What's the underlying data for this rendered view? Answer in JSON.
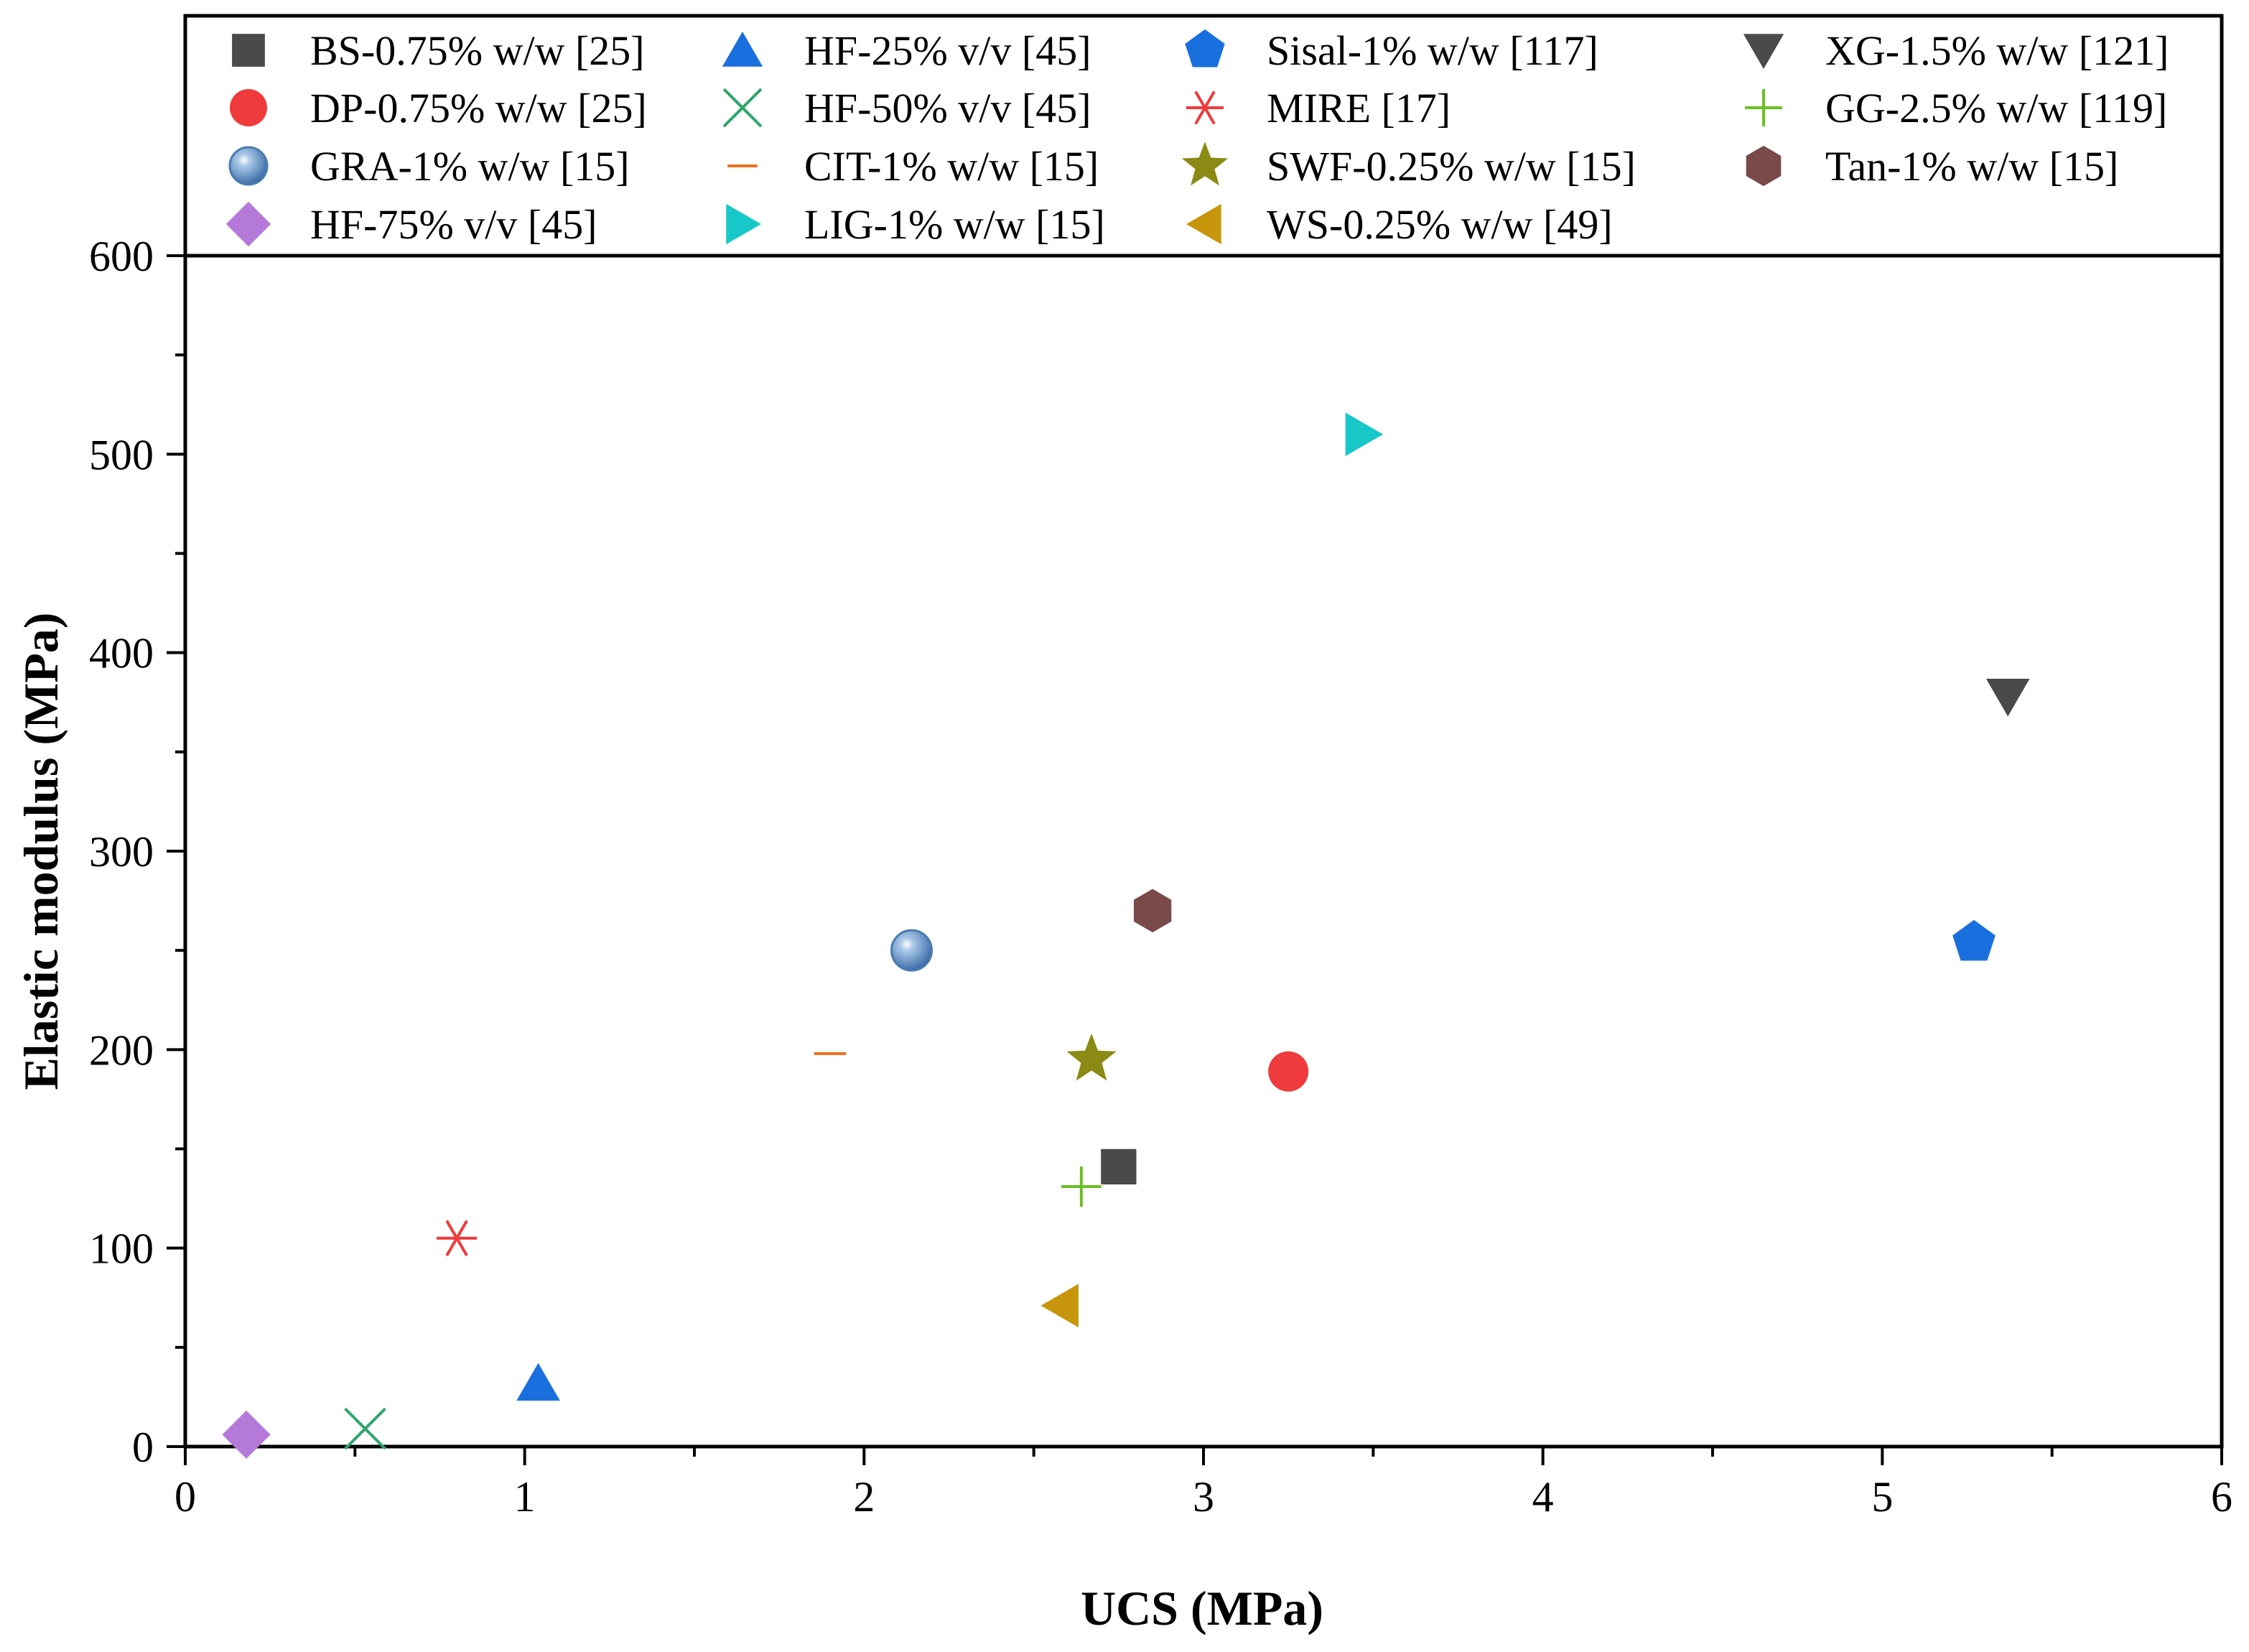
{
  "chart_data": {
    "type": "scatter",
    "title": "",
    "xlabel": "UCS (MPa)",
    "ylabel": "Elastic modulus (MPa)",
    "xlim": [
      0,
      6
    ],
    "ylim": [
      0,
      600
    ],
    "xticks": [
      0,
      1,
      2,
      3,
      4,
      5,
      6
    ],
    "xtick_labels": [
      "0",
      "1",
      "2",
      "3",
      "4",
      "5",
      "6"
    ],
    "yticks": [
      0,
      100,
      200,
      300,
      400,
      500,
      600
    ],
    "ytick_labels": [
      "0",
      "100",
      "200",
      "300",
      "400",
      "500",
      "600"
    ],
    "grid": false,
    "legend_position": "top",
    "series": [
      {
        "name": "BS-0.75% w/w [25]",
        "marker": "square",
        "color": "#4a4a4a",
        "x": 2.75,
        "y": 141
      },
      {
        "name": "DP-0.75% w/w [25]",
        "marker": "circle",
        "color": "#ef3b3b",
        "x": 3.25,
        "y": 189
      },
      {
        "name": "GRA-1% w/w [15]",
        "marker": "sphere",
        "color": "#5b8ec4",
        "x": 2.14,
        "y": 250
      },
      {
        "name": "HF-75% v/v [45]",
        "marker": "diamond",
        "color": "#b57ad9",
        "x": 0.18,
        "y": 6
      },
      {
        "name": "HF-25% v/v [45]",
        "marker": "triangle-up",
        "color": "#1a6fdf",
        "x": 1.04,
        "y": 32
      },
      {
        "name": "HF-50% v/v [45]",
        "marker": "x",
        "color": "#2fa66b",
        "x": 0.53,
        "y": 9
      },
      {
        "name": "CIT-1% w/w [15]",
        "marker": "dash",
        "color": "#f07020",
        "x": 1.9,
        "y": 198
      },
      {
        "name": "LIG-1% w/w [15]",
        "marker": "triangle-right",
        "color": "#18c8c8",
        "x": 3.47,
        "y": 510
      },
      {
        "name": "Sisal-1% w/w [117]",
        "marker": "pentagon",
        "color": "#1a6fdf",
        "x": 5.27,
        "y": 254
      },
      {
        "name": "MIRE [17]",
        "marker": "asterisk",
        "color": "#ef3b3b",
        "x": 0.8,
        "y": 105
      },
      {
        "name": "SWF-0.25% w/w [15]",
        "marker": "star",
        "color": "#8a8a14",
        "x": 2.67,
        "y": 195
      },
      {
        "name": "WS-0.25% w/w [49]",
        "marker": "triangle-left",
        "color": "#c8960c",
        "x": 2.58,
        "y": 71
      },
      {
        "name": "XG-1.5% w/w [121]",
        "marker": "triangle-down",
        "color": "#4a4a4a",
        "x": 5.37,
        "y": 378
      },
      {
        "name": "GG-2.5% w/w [119]",
        "marker": "plus",
        "color": "#6cc024",
        "x": 2.64,
        "y": 131
      },
      {
        "name": "Tan-1% w/w [15]",
        "marker": "hexagon",
        "color": "#7a4a4a",
        "x": 2.85,
        "y": 270
      }
    ]
  }
}
